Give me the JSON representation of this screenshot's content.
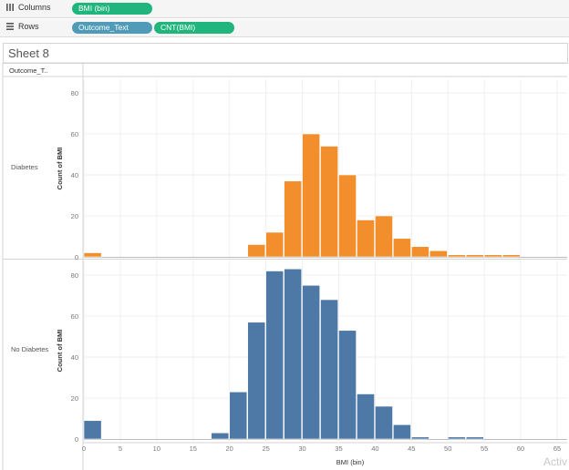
{
  "shelves": {
    "columns": {
      "label": "Columns",
      "pills": [
        "BMI (bin)"
      ]
    },
    "rows": {
      "label": "Rows",
      "pills": [
        "Outcome_Text",
        "CNT(BMI)"
      ]
    }
  },
  "sheet": {
    "title": "Sheet 8"
  },
  "header": {
    "outcome_column": "Outcome_T.."
  },
  "watermark": "Activ",
  "chart_data": {
    "type": "bar",
    "xlabel": "BMI (bin)",
    "ylabel": "Count of BMI",
    "x_ticks": [
      0,
      5,
      10,
      15,
      20,
      25,
      30,
      35,
      40,
      45,
      50,
      55,
      60,
      65
    ],
    "xlim": [
      0,
      67
    ],
    "ylim": [
      0,
      85
    ],
    "y_ticks": [
      0,
      20,
      40,
      60,
      80
    ],
    "bin_width": 2.5,
    "grid": true,
    "colors": {
      "Diabetes": "#f28e2b",
      "No Diabetes": "#4e79a7"
    },
    "series": [
      {
        "name": "Diabetes",
        "bins": [
          0,
          22.5,
          25,
          27.5,
          30,
          32.5,
          35,
          37.5,
          40,
          42.5,
          45,
          47.5,
          50,
          52.5,
          55,
          57.5
        ],
        "values": [
          2,
          6,
          12,
          37,
          60,
          54,
          40,
          18,
          20,
          9,
          5,
          3,
          1,
          1,
          1,
          1
        ]
      },
      {
        "name": "No Diabetes",
        "bins": [
          0,
          17.5,
          20,
          22.5,
          25,
          27.5,
          30,
          32.5,
          35,
          37.5,
          40,
          42.5,
          45,
          50,
          52.5
        ],
        "values": [
          9,
          3,
          23,
          57,
          82,
          83,
          75,
          68,
          53,
          22,
          16,
          7,
          1,
          1,
          1
        ]
      }
    ]
  }
}
